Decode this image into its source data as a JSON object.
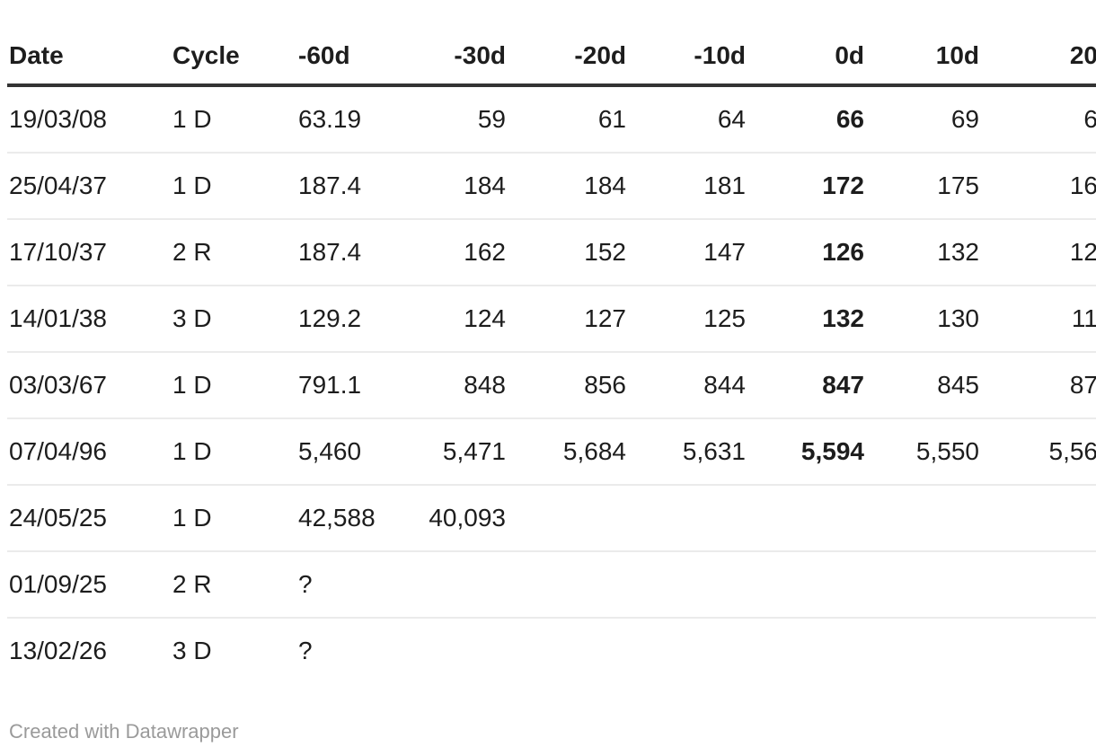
{
  "chart_data": {
    "type": "table",
    "columns": [
      {
        "label": "Date",
        "align": "left",
        "bold_values": false
      },
      {
        "label": "Cycle",
        "align": "left",
        "bold_values": false
      },
      {
        "label": "-60d",
        "align": "left",
        "bold_values": false
      },
      {
        "label": "-30d",
        "align": "right",
        "bold_values": false
      },
      {
        "label": "-20d",
        "align": "right",
        "bold_values": false
      },
      {
        "label": "-10d",
        "align": "right",
        "bold_values": false
      },
      {
        "label": "0d",
        "align": "right",
        "bold_values": true
      },
      {
        "label": "10d",
        "align": "right",
        "bold_values": false
      },
      {
        "label": "20",
        "align": "right",
        "bold_values": false
      }
    ],
    "rows": [
      [
        "19/03/08",
        "1 D",
        "63.19",
        "59",
        "61",
        "64",
        "66",
        "69",
        "6"
      ],
      [
        "25/04/37",
        "1 D",
        "187.4",
        "184",
        "184",
        "181",
        "172",
        "175",
        "16"
      ],
      [
        "17/10/37",
        "2 R",
        "187.4",
        "162",
        "152",
        "147",
        "126",
        "132",
        "12"
      ],
      [
        "14/01/38",
        "3 D",
        "129.2",
        "124",
        "127",
        "125",
        "132",
        "130",
        "11"
      ],
      [
        "03/03/67",
        "1 D",
        "791.1",
        "848",
        "856",
        "844",
        "847",
        "845",
        "87"
      ],
      [
        "07/04/96",
        "1 D",
        "5,460",
        "5,471",
        "5,684",
        "5,631",
        "5,594",
        "5,550",
        "5,56"
      ],
      [
        "24/05/25",
        "1 D",
        "42,588",
        "40,093",
        "",
        "",
        "",
        "",
        ""
      ],
      [
        "01/09/25",
        "2 R",
        "?",
        "",
        "",
        "",
        "",
        "",
        ""
      ],
      [
        "13/02/26",
        "3 D",
        "?",
        "",
        "",
        "",
        "",
        "",
        ""
      ]
    ],
    "layout_hints": {
      "grid": "horizontal-rules-only",
      "header_rule": "thick-dark",
      "last_column_clipped_at_right_edge": true
    }
  },
  "footer": {
    "attribution": "Created with Datawrapper"
  },
  "colors": {
    "text": "#1d1d1d",
    "header_rule": "#333333",
    "row_rule": "#ebebeb",
    "attribution_text": "#9a9a9a",
    "background": "#ffffff"
  }
}
